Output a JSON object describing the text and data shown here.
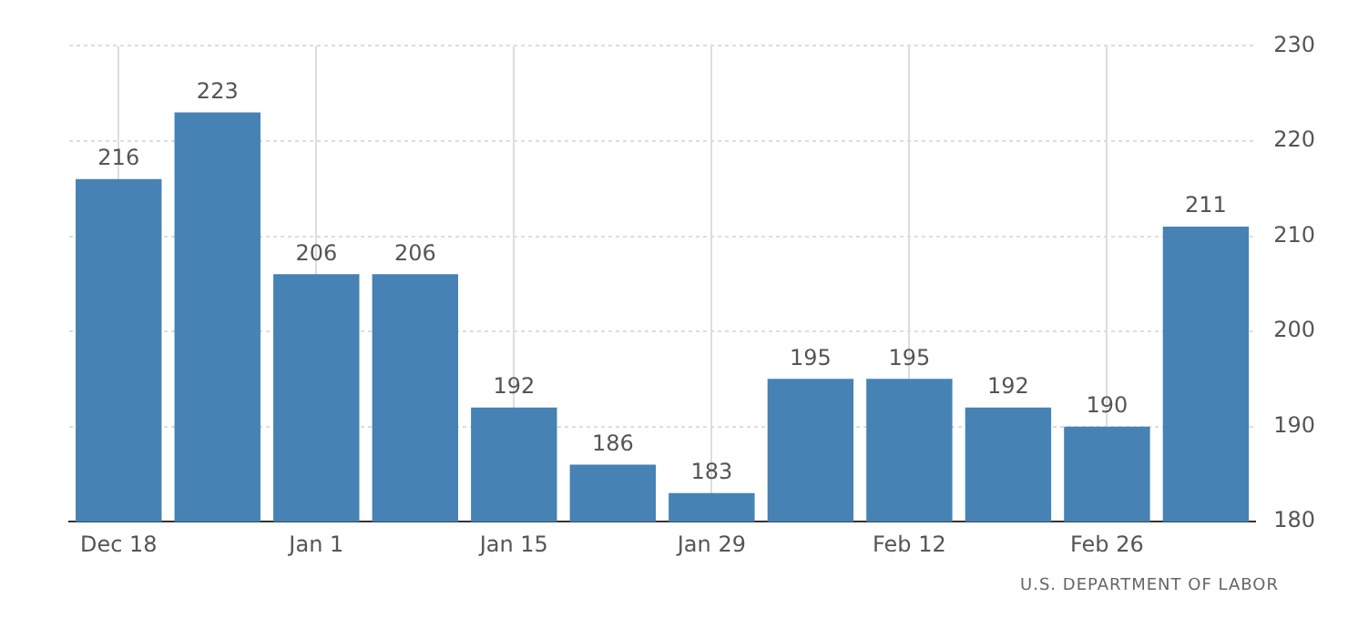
{
  "chart_data": {
    "type": "bar",
    "categories": [
      "Dec 18",
      null,
      "Jan 1",
      null,
      "Jan 15",
      null,
      "Jan 29",
      null,
      "Feb 12",
      null,
      "Feb 26",
      null
    ],
    "values": [
      216,
      223,
      206,
      206,
      192,
      186,
      183,
      195,
      195,
      192,
      190,
      211
    ],
    "color": "#4682b4",
    "ylim": [
      180,
      230
    ],
    "yticks": [
      180,
      190,
      200,
      210,
      220,
      230
    ],
    "grid": true,
    "data_labels": true,
    "annotations": [
      "U.S. DEPARTMENT OF LABOR"
    ]
  }
}
